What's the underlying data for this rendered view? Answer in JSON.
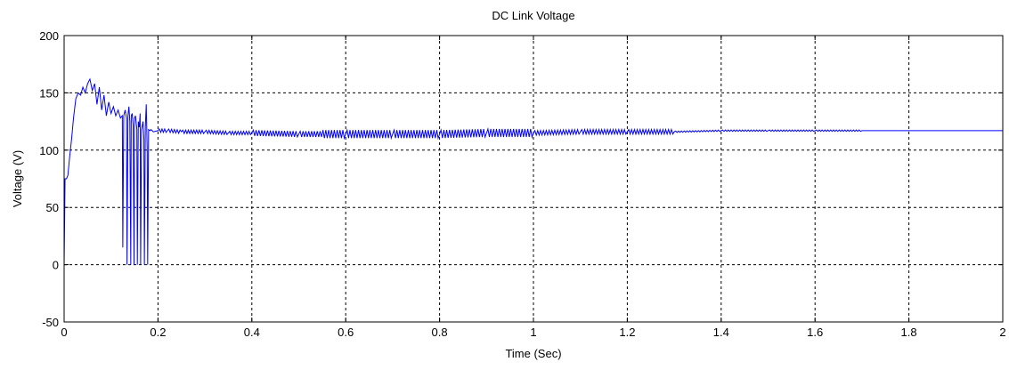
{
  "chart_data": {
    "type": "line",
    "title": "DC Link Voltage",
    "xlabel": "Time (Sec)",
    "ylabel": "Voltage (V)",
    "xlim": [
      0,
      2
    ],
    "ylim": [
      -50,
      200
    ],
    "xticks": [
      0,
      0.2,
      0.4,
      0.6,
      0.8,
      1,
      1.2,
      1.4,
      1.6,
      1.8,
      2
    ],
    "xtick_labels": [
      "0",
      "0.2",
      "0.4",
      "0.6",
      "0.8",
      "1",
      "1.2",
      "1.4",
      "1.6",
      "1.8",
      "2"
    ],
    "yticks": [
      -50,
      0,
      50,
      100,
      150,
      200
    ],
    "ytick_labels": [
      "-50",
      "0",
      "50",
      "100",
      "150",
      "200"
    ],
    "grid": true,
    "series": [
      {
        "color": "#0000ff",
        "x": [
          0,
          0.002,
          0.005,
          0.008,
          0.012,
          0.016,
          0.02,
          0.025,
          0.03,
          0.035,
          0.04,
          0.045,
          0.05,
          0.055,
          0.06,
          0.065,
          0.07,
          0.075,
          0.08,
          0.085,
          0.09,
          0.095,
          0.1,
          0.105,
          0.11,
          0.115,
          0.12,
          0.124,
          0.125,
          0.127,
          0.13,
          0.133,
          0.134,
          0.136,
          0.138,
          0.14,
          0.142,
          0.143,
          0.145,
          0.147,
          0.149,
          0.15,
          0.152,
          0.155,
          0.156,
          0.158,
          0.16,
          0.162,
          0.163,
          0.165,
          0.168,
          0.17,
          0.171,
          0.173,
          0.175,
          0.177,
          0.178,
          0.18,
          0.183,
          0.185,
          0.19,
          0.2,
          0.22,
          0.25,
          0.3,
          0.35,
          0.4,
          0.5,
          0.6,
          0.7,
          0.8,
          0.9,
          1.0,
          1.1,
          1.2,
          1.3,
          1.4,
          1.5,
          1.6,
          1.7,
          1.8,
          1.9,
          2.0
        ],
        "y": [
          0,
          75,
          75,
          78,
          95,
          110,
          128,
          145,
          150,
          148,
          155,
          150,
          158,
          162,
          152,
          158,
          140,
          155,
          135,
          148,
          130,
          142,
          132,
          138,
          130,
          135,
          128,
          130,
          15,
          130,
          135,
          128,
          0,
          130,
          138,
          125,
          0,
          130,
          132,
          122,
          0,
          128,
          130,
          118,
          0,
          125,
          120,
          132,
          0,
          118,
          125,
          110,
          0,
          120,
          140,
          100,
          0,
          118,
          117,
          118,
          116,
          117,
          117,
          116,
          116,
          115,
          115,
          114,
          114,
          114,
          114,
          115,
          115,
          116,
          116,
          116,
          117,
          117,
          117,
          117,
          117,
          117,
          117
        ]
      }
    ],
    "ripple": [
      {
        "x_start": 0.2,
        "x_end": 0.4,
        "amplitude": 1.5
      },
      {
        "x_start": 0.4,
        "x_end": 0.55,
        "amplitude": 2.5
      },
      {
        "x_start": 0.55,
        "x_end": 1.0,
        "amplitude": 3.5
      },
      {
        "x_start": 1.0,
        "x_end": 1.3,
        "amplitude": 2.0
      },
      {
        "x_start": 1.3,
        "x_end": 1.7,
        "amplitude": 0.6
      }
    ]
  }
}
